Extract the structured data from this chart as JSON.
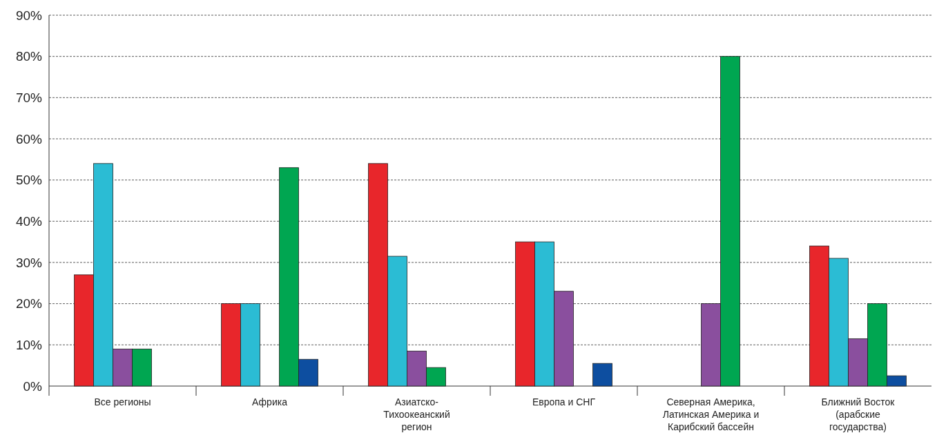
{
  "chart_data": {
    "type": "bar",
    "categories": [
      "Все регионы",
      "Африка",
      "Азиатско-Тихоокеанский регион",
      "Европа и СНГ",
      "Северная Америка, Латинская Америка и Карибский бассейн",
      "Ближний Восток (арабские государства)"
    ],
    "series": [
      {
        "color": "#e8262b",
        "values": [
          27,
          20,
          54,
          35,
          null,
          34
        ]
      },
      {
        "color": "#2bbcd4",
        "values": [
          54,
          20,
          31.5,
          35,
          null,
          31
        ]
      },
      {
        "color": "#8a4f9e",
        "values": [
          9,
          null,
          8.5,
          23,
          20,
          11.5
        ]
      },
      {
        "color": "#00a651",
        "values": [
          9,
          53,
          4.5,
          null,
          80,
          20
        ]
      },
      {
        "color": "#0d4ea0",
        "values": [
          null,
          6.5,
          null,
          5.5,
          null,
          2.5
        ]
      }
    ],
    "ylim": [
      0,
      90
    ],
    "yticks": [
      {
        "value": 0,
        "label": "0%"
      },
      {
        "value": 10,
        "label": "10%"
      },
      {
        "value": 20,
        "label": "20%"
      },
      {
        "value": 30,
        "label": "30%"
      },
      {
        "value": 40,
        "label": "40%"
      },
      {
        "value": 50,
        "label": "50%"
      },
      {
        "value": 60,
        "label": "60%"
      },
      {
        "value": 70,
        "label": "70%"
      },
      {
        "value": 80,
        "label": "80%"
      },
      {
        "value": 90,
        "label": "90%"
      }
    ],
    "grid": "y"
  }
}
